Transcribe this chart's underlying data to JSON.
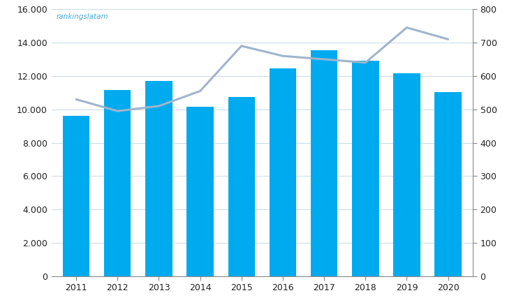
{
  "years": [
    2011,
    2012,
    2013,
    2014,
    2015,
    2016,
    2017,
    2018,
    2019,
    2020
  ],
  "bar_values": [
    9600,
    11150,
    11700,
    10150,
    10750,
    12450,
    13550,
    12900,
    12150,
    11050
  ],
  "line_values": [
    530,
    495,
    510,
    555,
    690,
    660,
    650,
    640,
    745,
    710
  ],
  "bar_color": "#00AAEE",
  "line_color": "#A0B4CC",
  "bar_ylim": [
    0,
    16000
  ],
  "line_ylim": [
    0,
    800
  ],
  "bar_yticks": [
    0,
    2000,
    4000,
    6000,
    8000,
    10000,
    12000,
    14000,
    16000
  ],
  "line_yticks": [
    0,
    100,
    200,
    300,
    400,
    500,
    600,
    700,
    800
  ],
  "watermark": "rankingslatam",
  "watermark_color": "#44AADD",
  "background_color": "#FFFFFF",
  "grid_color": "#CCDDE8",
  "tick_label_color": "#222222",
  "spine_color": "#888888",
  "figsize": [
    7.36,
    4.4
  ],
  "dpi": 100
}
